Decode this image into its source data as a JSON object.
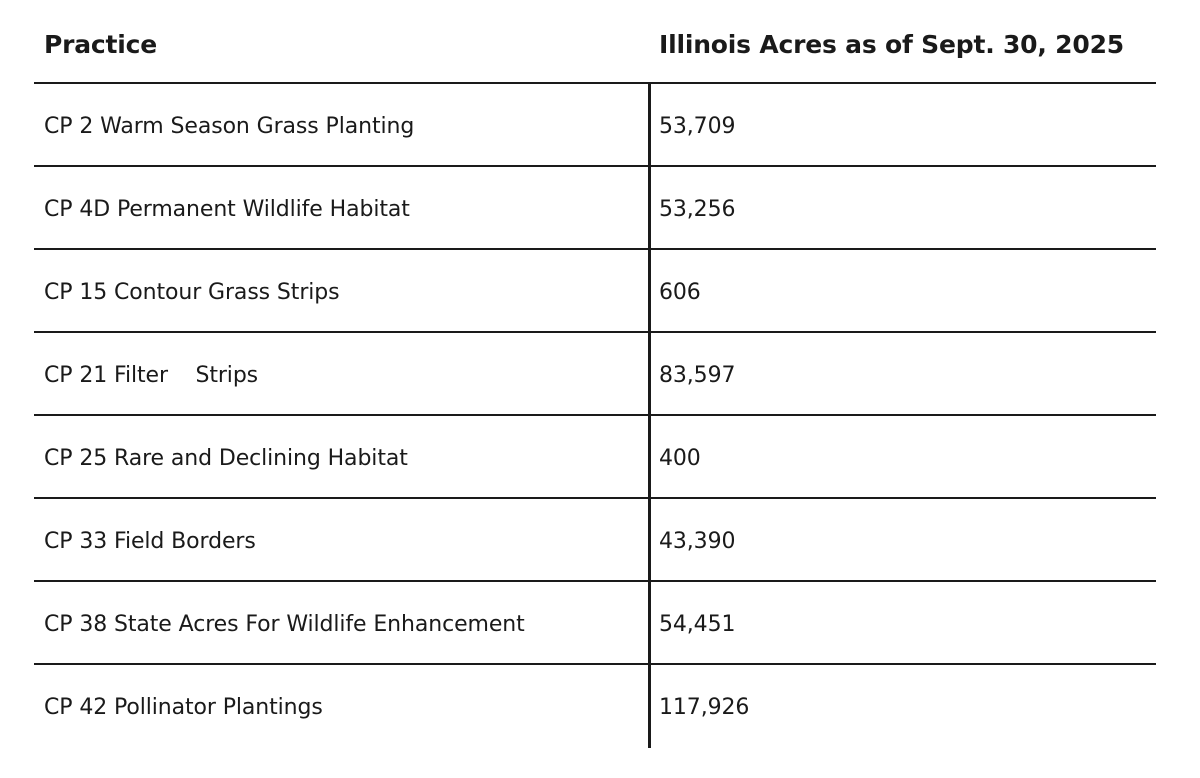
{
  "table": {
    "headers": {
      "practice": "Practice",
      "acres": "Illinois Acres as of Sept. 30, 2025"
    },
    "rows": [
      {
        "practice": "CP 2 Warm Season Grass Planting",
        "acres": "53,709"
      },
      {
        "practice": "CP 4D Permanent Wildlife Habitat",
        "acres": "53,256"
      },
      {
        "practice": "CP 15 Contour Grass Strips",
        "acres": "606"
      },
      {
        "practice": "CP 21 Filter    Strips",
        "acres": "83,597"
      },
      {
        "practice": "CP 25 Rare and Declining Habitat",
        "acres": "400"
      },
      {
        "practice": "CP 33 Field Borders",
        "acres": "43,390"
      },
      {
        "practice": "CP 38 State Acres For Wildlife Enhancement",
        "acres": "54,451"
      },
      {
        "practice": "CP 42 Pollinator Plantings",
        "acres": "117,926"
      }
    ]
  }
}
